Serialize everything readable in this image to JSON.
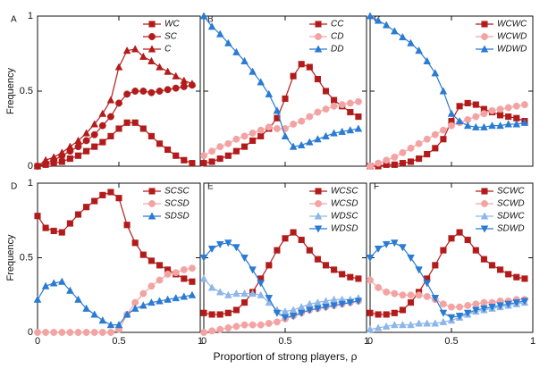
{
  "chart_data": [
    {
      "type": "line",
      "panel": "A",
      "ylabel": "Frequency",
      "legend": "upper right",
      "x": [
        0,
        0.05,
        0.1,
        0.15,
        0.2,
        0.25,
        0.3,
        0.35,
        0.4,
        0.45,
        0.5,
        0.55,
        0.6,
        0.65,
        0.7,
        0.75,
        0.8,
        0.85,
        0.9,
        0.95
      ],
      "xlim": [
        0,
        1
      ],
      "ylim": [
        0,
        1
      ],
      "xticks": [
        0,
        0.5,
        1
      ],
      "yticks": [
        0,
        0.5,
        1
      ],
      "series": [
        {
          "name": "WC",
          "color": "#b31b1b",
          "marker": "square",
          "values": [
            0,
            0.01,
            0.02,
            0.03,
            0.05,
            0.07,
            0.1,
            0.13,
            0.16,
            0.2,
            0.25,
            0.29,
            0.29,
            0.25,
            0.2,
            0.15,
            0.11,
            0.07,
            0.04,
            0.02
          ]
        },
        {
          "name": "SC",
          "color": "#b31b1b",
          "marker": "circle",
          "values": [
            0,
            0.02,
            0.04,
            0.07,
            0.1,
            0.13,
            0.17,
            0.21,
            0.27,
            0.33,
            0.42,
            0.48,
            0.5,
            0.5,
            0.49,
            0.5,
            0.51,
            0.52,
            0.53,
            0.54
          ]
        },
        {
          "name": "C",
          "color": "#b31b1b",
          "marker": "triangle-up",
          "values": [
            0,
            0.04,
            0.06,
            0.09,
            0.13,
            0.17,
            0.22,
            0.28,
            0.35,
            0.44,
            0.66,
            0.77,
            0.78,
            0.73,
            0.7,
            0.66,
            0.63,
            0.6,
            0.57,
            0.55
          ]
        }
      ]
    },
    {
      "type": "line",
      "panel": "B",
      "legend": "upper right",
      "x": [
        0,
        0.05,
        0.1,
        0.15,
        0.2,
        0.25,
        0.3,
        0.35,
        0.4,
        0.45,
        0.5,
        0.55,
        0.6,
        0.65,
        0.7,
        0.75,
        0.8,
        0.85,
        0.9,
        0.95
      ],
      "xlim": [
        0,
        1
      ],
      "ylim": [
        0,
        1
      ],
      "xticks": [
        0,
        0.5,
        1
      ],
      "yticks": [
        0,
        0.5,
        1
      ],
      "series": [
        {
          "name": "CC",
          "color": "#b31b1b",
          "marker": "square",
          "values": [
            0.02,
            0.03,
            0.05,
            0.07,
            0.1,
            0.13,
            0.17,
            0.2,
            0.25,
            0.32,
            0.45,
            0.6,
            0.68,
            0.66,
            0.58,
            0.5,
            0.44,
            0.4,
            0.36,
            0.33
          ]
        },
        {
          "name": "CD",
          "color": "#f4a3a3",
          "marker": "circle",
          "values": [
            0.07,
            0.1,
            0.13,
            0.15,
            0.18,
            0.2,
            0.22,
            0.24,
            0.26,
            0.25,
            0.25,
            0.28,
            0.3,
            0.33,
            0.36,
            0.38,
            0.4,
            0.41,
            0.42,
            0.43
          ]
        },
        {
          "name": "DD",
          "color": "#2a7bd4",
          "marker": "triangle-up",
          "values": [
            1,
            0.93,
            0.88,
            0.82,
            0.76,
            0.7,
            0.63,
            0.56,
            0.48,
            0.37,
            0.2,
            0.13,
            0.14,
            0.16,
            0.18,
            0.2,
            0.22,
            0.23,
            0.24,
            0.25
          ]
        }
      ]
    },
    {
      "type": "line",
      "panel": "C",
      "legend": "upper right",
      "x": [
        0,
        0.05,
        0.1,
        0.15,
        0.2,
        0.25,
        0.3,
        0.35,
        0.4,
        0.45,
        0.5,
        0.55,
        0.6,
        0.65,
        0.7,
        0.75,
        0.8,
        0.85,
        0.9,
        0.95
      ],
      "xlim": [
        0,
        1
      ],
      "ylim": [
        0,
        1
      ],
      "xticks": [
        0,
        0.5,
        1
      ],
      "yticks": [
        0,
        0.5,
        1
      ],
      "series": [
        {
          "name": "WCWC",
          "color": "#b31b1b",
          "marker": "square",
          "values": [
            0,
            0,
            0.01,
            0.01,
            0.02,
            0.03,
            0.05,
            0.08,
            0.12,
            0.18,
            0.3,
            0.4,
            0.42,
            0.41,
            0.38,
            0.36,
            0.34,
            0.33,
            0.32,
            0.3
          ]
        },
        {
          "name": "WCWD",
          "color": "#f4a3a3",
          "marker": "circle",
          "values": [
            0,
            0.02,
            0.04,
            0.06,
            0.09,
            0.12,
            0.15,
            0.18,
            0.21,
            0.24,
            0.27,
            0.29,
            0.31,
            0.33,
            0.35,
            0.37,
            0.38,
            0.39,
            0.4,
            0.41
          ]
        },
        {
          "name": "WDWD",
          "color": "#2a7bd4",
          "marker": "triangle-up",
          "values": [
            1,
            0.97,
            0.94,
            0.9,
            0.86,
            0.82,
            0.77,
            0.7,
            0.62,
            0.5,
            0.35,
            0.3,
            0.27,
            0.26,
            0.26,
            0.27,
            0.27,
            0.28,
            0.28,
            0.29
          ]
        }
      ]
    },
    {
      "type": "line",
      "panel": "D",
      "ylabel": "Frequency",
      "legend": "upper right",
      "x": [
        0,
        0.05,
        0.1,
        0.15,
        0.2,
        0.25,
        0.3,
        0.35,
        0.4,
        0.45,
        0.5,
        0.55,
        0.6,
        0.65,
        0.7,
        0.75,
        0.8,
        0.85,
        0.9,
        0.95
      ],
      "xlim": [
        0,
        1
      ],
      "ylim": [
        0,
        1
      ],
      "xticks": [
        0,
        0.5,
        1
      ],
      "yticks": [
        0,
        0.5,
        1
      ],
      "series": [
        {
          "name": "SCSC",
          "color": "#b31b1b",
          "marker": "square",
          "values": [
            0.78,
            0.7,
            0.68,
            0.67,
            0.73,
            0.79,
            0.84,
            0.88,
            0.92,
            0.94,
            0.9,
            0.72,
            0.6,
            0.52,
            0.48,
            0.45,
            0.42,
            0.39,
            0.36,
            0.34
          ]
        },
        {
          "name": "SCSD",
          "color": "#f4a3a3",
          "marker": "circle",
          "values": [
            0,
            0,
            0,
            0,
            0,
            0,
            0,
            0,
            0,
            0,
            0.02,
            0.12,
            0.2,
            0.26,
            0.31,
            0.35,
            0.39,
            0.4,
            0.42,
            0.43
          ]
        },
        {
          "name": "SDSD",
          "color": "#2a7bd4",
          "marker": "triangle-up",
          "values": [
            0.22,
            0.31,
            0.33,
            0.34,
            0.28,
            0.22,
            0.16,
            0.12,
            0.08,
            0.05,
            0.05,
            0.12,
            0.16,
            0.18,
            0.2,
            0.21,
            0.22,
            0.23,
            0.24,
            0.25
          ]
        }
      ]
    },
    {
      "type": "line",
      "panel": "E",
      "xlabel": "Proportion of strong players, ρ",
      "legend": "upper right",
      "x": [
        0,
        0.05,
        0.1,
        0.15,
        0.2,
        0.25,
        0.3,
        0.35,
        0.4,
        0.45,
        0.5,
        0.55,
        0.6,
        0.65,
        0.7,
        0.75,
        0.8,
        0.85,
        0.9,
        0.95
      ],
      "xlim": [
        0,
        1
      ],
      "ylim": [
        0,
        1
      ],
      "xticks": [
        0,
        0.5,
        1
      ],
      "yticks": [
        0,
        0.5,
        1
      ],
      "series": [
        {
          "name": "WCSC",
          "color": "#b31b1b",
          "marker": "square",
          "values": [
            0.13,
            0.12,
            0.12,
            0.13,
            0.15,
            0.2,
            0.27,
            0.36,
            0.45,
            0.55,
            0.63,
            0.67,
            0.62,
            0.55,
            0.49,
            0.45,
            0.42,
            0.39,
            0.37,
            0.36
          ]
        },
        {
          "name": "WCSD",
          "color": "#f4a3a3",
          "marker": "circle",
          "values": [
            0,
            0.01,
            0.02,
            0.03,
            0.04,
            0.05,
            0.05,
            0.05,
            0.06,
            0.07,
            0.09,
            0.11,
            0.13,
            0.15,
            0.16,
            0.17,
            0.18,
            0.19,
            0.2,
            0.21
          ]
        },
        {
          "name": "WDSC",
          "color": "#8db6ea",
          "marker": "triangle-up",
          "values": [
            0.36,
            0.3,
            0.27,
            0.25,
            0.26,
            0.26,
            0.26,
            0.25,
            0.2,
            0.15,
            0.14,
            0.15,
            0.17,
            0.19,
            0.2,
            0.21,
            0.22,
            0.22,
            0.22,
            0.23
          ]
        },
        {
          "name": "WDSD",
          "color": "#2a7bd4",
          "marker": "triangle-down",
          "values": [
            0.5,
            0.56,
            0.59,
            0.6,
            0.57,
            0.5,
            0.42,
            0.33,
            0.23,
            0.13,
            0.1,
            0.11,
            0.13,
            0.15,
            0.16,
            0.17,
            0.18,
            0.19,
            0.2,
            0.21
          ]
        }
      ]
    },
    {
      "type": "line",
      "panel": "F",
      "legend": "upper right",
      "x": [
        0,
        0.05,
        0.1,
        0.15,
        0.2,
        0.25,
        0.3,
        0.35,
        0.4,
        0.45,
        0.5,
        0.55,
        0.6,
        0.65,
        0.7,
        0.75,
        0.8,
        0.85,
        0.9,
        0.95
      ],
      "xlim": [
        0,
        1
      ],
      "ylim": [
        0,
        1
      ],
      "xticks": [
        0,
        0.5,
        1
      ],
      "yticks": [
        0,
        0.5,
        1
      ],
      "series": [
        {
          "name": "SCWC",
          "color": "#b31b1b",
          "marker": "square",
          "values": [
            0.13,
            0.12,
            0.12,
            0.13,
            0.15,
            0.2,
            0.27,
            0.36,
            0.45,
            0.55,
            0.63,
            0.67,
            0.62,
            0.55,
            0.49,
            0.45,
            0.42,
            0.39,
            0.37,
            0.36
          ]
        },
        {
          "name": "SCWD",
          "color": "#f4a3a3",
          "marker": "circle",
          "values": [
            0.35,
            0.3,
            0.27,
            0.26,
            0.25,
            0.25,
            0.25,
            0.24,
            0.22,
            0.19,
            0.17,
            0.17,
            0.18,
            0.19,
            0.2,
            0.2,
            0.21,
            0.21,
            0.22,
            0.22
          ]
        },
        {
          "name": "SDWC",
          "color": "#8db6ea",
          "marker": "triangle-up",
          "values": [
            0.02,
            0.03,
            0.04,
            0.05,
            0.05,
            0.05,
            0.06,
            0.06,
            0.06,
            0.07,
            0.08,
            0.1,
            0.12,
            0.14,
            0.15,
            0.16,
            0.17,
            0.18,
            0.19,
            0.2
          ]
        },
        {
          "name": "SDWD",
          "color": "#2a7bd4",
          "marker": "triangle-down",
          "values": [
            0.5,
            0.56,
            0.59,
            0.6,
            0.57,
            0.5,
            0.42,
            0.33,
            0.23,
            0.13,
            0.1,
            0.11,
            0.13,
            0.15,
            0.16,
            0.17,
            0.18,
            0.19,
            0.2,
            0.21
          ]
        }
      ]
    }
  ]
}
